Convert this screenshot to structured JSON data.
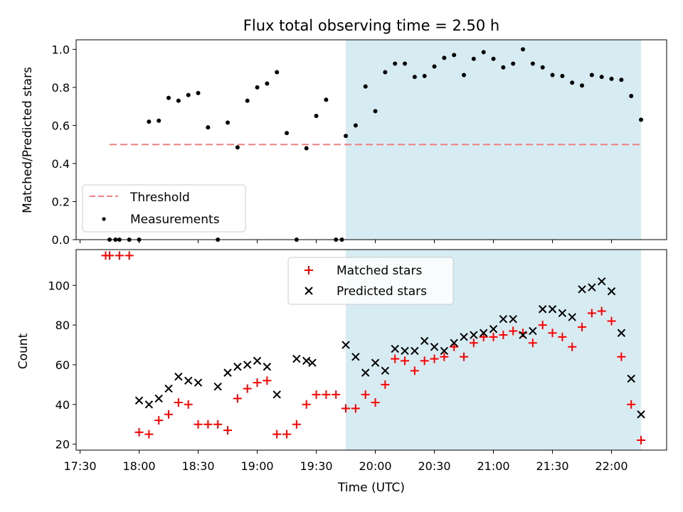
{
  "title": "Flux total observing time = 2.50 h",
  "colors": {
    "shade": "#add8e6",
    "threshold": "#f08080",
    "measurement": "#000000",
    "matched": "#ff0000",
    "predicted": "#000000"
  },
  "chart_data": [
    {
      "type": "scatter",
      "ylabel": "Matched/Predicted stars",
      "ylim": [
        0,
        1.05
      ],
      "yticks": [
        "0.0",
        "0.2",
        "0.4",
        "0.6",
        "0.8",
        "1.0"
      ],
      "highlight_span": {
        "start": 135,
        "end": 285
      },
      "threshold": {
        "name": "Threshold",
        "value": 0.5,
        "x_start": 15,
        "x_end": 285
      },
      "legend": {
        "placement": "lower-left",
        "entries": [
          "Threshold",
          "Measurements"
        ]
      },
      "series": [
        {
          "name": "Measurements",
          "points": [
            [
              15,
              0
            ],
            [
              18,
              0
            ],
            [
              20,
              0
            ],
            [
              25,
              0
            ],
            [
              30,
              0
            ],
            [
              35,
              0.62
            ],
            [
              40,
              0.625
            ],
            [
              45,
              0.745
            ],
            [
              50,
              0.73
            ],
            [
              55,
              0.76
            ],
            [
              60,
              0.77
            ],
            [
              65,
              0.59
            ],
            [
              70,
              0
            ],
            [
              75,
              0.615
            ],
            [
              80,
              0.485
            ],
            [
              85,
              0.73
            ],
            [
              90,
              0.8
            ],
            [
              95,
              0.82
            ],
            [
              100,
              0.88
            ],
            [
              105,
              0.56
            ],
            [
              110,
              0
            ],
            [
              115,
              0.48
            ],
            [
              120,
              0.65
            ],
            [
              125,
              0.735
            ],
            [
              130,
              0
            ],
            [
              133,
              0
            ],
            [
              135,
              0.545
            ],
            [
              140,
              0.6
            ],
            [
              145,
              0.805
            ],
            [
              150,
              0.675
            ],
            [
              155,
              0.88
            ],
            [
              160,
              0.925
            ],
            [
              165,
              0.925
            ],
            [
              170,
              0.855
            ],
            [
              175,
              0.86
            ],
            [
              180,
              0.91
            ],
            [
              185,
              0.955
            ],
            [
              190,
              0.97
            ],
            [
              195,
              0.865
            ],
            [
              200,
              0.95
            ],
            [
              205,
              0.985
            ],
            [
              210,
              0.95
            ],
            [
              215,
              0.905
            ],
            [
              220,
              0.925
            ],
            [
              225,
              1.0
            ],
            [
              230,
              0.925
            ],
            [
              235,
              0.905
            ],
            [
              240,
              0.865
            ],
            [
              245,
              0.86
            ],
            [
              250,
              0.825
            ],
            [
              255,
              0.81
            ],
            [
              260,
              0.865
            ],
            [
              265,
              0.855
            ],
            [
              270,
              0.845
            ],
            [
              275,
              0.84
            ],
            [
              280,
              0.755
            ],
            [
              285,
              0.63
            ]
          ]
        }
      ]
    },
    {
      "type": "scatter",
      "xlabel": "Time (UTC)",
      "ylabel": "Count",
      "xlim": [
        -2,
        298
      ],
      "ylim": [
        17,
        118
      ],
      "yticks": [
        "20",
        "40",
        "60",
        "80",
        "100"
      ],
      "xticks": [
        "17:30",
        "18:00",
        "18:30",
        "19:00",
        "19:30",
        "20:00",
        "20:30",
        "21:00",
        "21:30",
        "22:00"
      ],
      "highlight_span": {
        "start": 135,
        "end": 285
      },
      "legend": {
        "placement": "upper-center",
        "entries": [
          "Matched stars",
          "Predicted stars"
        ]
      },
      "series": [
        {
          "name": "Matched stars",
          "points": [
            [
              13,
              115
            ],
            [
              15,
              115
            ],
            [
              20,
              115
            ],
            [
              25,
              115
            ],
            [
              30,
              26
            ],
            [
              35,
              25
            ],
            [
              40,
              32
            ],
            [
              45,
              35
            ],
            [
              50,
              41
            ],
            [
              55,
              40
            ],
            [
              60,
              30
            ],
            [
              65,
              30
            ],
            [
              70,
              30
            ],
            [
              75,
              27
            ],
            [
              80,
              43
            ],
            [
              85,
              48
            ],
            [
              90,
              51
            ],
            [
              95,
              52
            ],
            [
              100,
              25
            ],
            [
              105,
              25
            ],
            [
              110,
              30
            ],
            [
              115,
              40
            ],
            [
              120,
              45
            ],
            [
              125,
              45
            ],
            [
              130,
              45
            ],
            [
              135,
              38
            ],
            [
              140,
              38
            ],
            [
              145,
              45
            ],
            [
              150,
              41
            ],
            [
              155,
              50
            ],
            [
              160,
              63
            ],
            [
              165,
              62
            ],
            [
              170,
              57
            ],
            [
              175,
              62
            ],
            [
              180,
              63
            ],
            [
              185,
              64
            ],
            [
              190,
              69
            ],
            [
              195,
              64
            ],
            [
              200,
              71
            ],
            [
              205,
              74
            ],
            [
              210,
              74
            ],
            [
              215,
              75
            ],
            [
              220,
              77
            ],
            [
              225,
              76
            ],
            [
              230,
              71
            ],
            [
              235,
              80
            ],
            [
              240,
              76
            ],
            [
              245,
              74
            ],
            [
              250,
              69
            ],
            [
              255,
              79
            ],
            [
              260,
              86
            ],
            [
              265,
              87
            ],
            [
              270,
              82
            ],
            [
              275,
              64
            ],
            [
              280,
              40
            ],
            [
              285,
              22
            ]
          ]
        },
        {
          "name": "Predicted stars",
          "points": [
            [
              30,
              42
            ],
            [
              35,
              40
            ],
            [
              40,
              43
            ],
            [
              45,
              48
            ],
            [
              50,
              54
            ],
            [
              55,
              52
            ],
            [
              60,
              51
            ],
            [
              70,
              49
            ],
            [
              75,
              56
            ],
            [
              80,
              59
            ],
            [
              85,
              60
            ],
            [
              90,
              62
            ],
            [
              95,
              59
            ],
            [
              100,
              45
            ],
            [
              110,
              63
            ],
            [
              115,
              62
            ],
            [
              118,
              61
            ],
            [
              135,
              70
            ],
            [
              140,
              64
            ],
            [
              145,
              56
            ],
            [
              150,
              61
            ],
            [
              155,
              57
            ],
            [
              160,
              68
            ],
            [
              165,
              67
            ],
            [
              170,
              67
            ],
            [
              175,
              72
            ],
            [
              180,
              69
            ],
            [
              185,
              67
            ],
            [
              190,
              71
            ],
            [
              195,
              74
            ],
            [
              200,
              75
            ],
            [
              205,
              76
            ],
            [
              210,
              78
            ],
            [
              215,
              83
            ],
            [
              220,
              83
            ],
            [
              225,
              75
            ],
            [
              230,
              77
            ],
            [
              235,
              88
            ],
            [
              240,
              88
            ],
            [
              245,
              86
            ],
            [
              250,
              84
            ],
            [
              255,
              98
            ],
            [
              260,
              99
            ],
            [
              265,
              102
            ],
            [
              270,
              97
            ],
            [
              275,
              76
            ],
            [
              280,
              53
            ],
            [
              285,
              35
            ]
          ]
        }
      ]
    }
  ]
}
